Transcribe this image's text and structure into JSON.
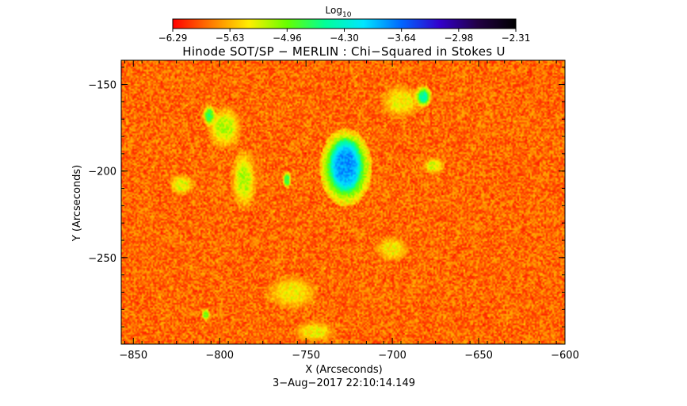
{
  "chart_data": {
    "type": "heatmap",
    "title": "Hinode SOT/SP − MERLIN : Chi−Squared in Stokes U",
    "xlabel": "X (Arcseconds)",
    "ylabel": "Y (Arcseconds)",
    "timestamp": "3−Aug−2017 22:10:14.149",
    "colorbar": {
      "label_main": "Log",
      "label_sub": "10",
      "tick_labels": [
        "−6.29",
        "−5.63",
        "−4.96",
        "−4.30",
        "−3.64",
        "−2.98",
        "−2.31"
      ],
      "range": [
        -6.29,
        -2.31
      ],
      "colormap": [
        "#ff0000",
        "#ff7a00",
        "#ffee00",
        "#66ff00",
        "#00ff99",
        "#00e6ff",
        "#0066ff",
        "#3300cc",
        "#220044",
        "#000000"
      ]
    },
    "xlim": [
      -857,
      -600
    ],
    "ylim": [
      -300,
      -136
    ],
    "x_ticks": [
      -850,
      -800,
      -750,
      -700,
      -650,
      -600
    ],
    "x_tick_labels": [
      "−850",
      "−800",
      "−750",
      "−700",
      "−650",
      "−600"
    ],
    "y_ticks": [
      -150,
      -200,
      -250
    ],
    "y_tick_labels": [
      "−150",
      "−200",
      "−250"
    ],
    "background_level": -5.9,
    "features": [
      {
        "x": -727,
        "y": -198,
        "rx": 12,
        "ry": 18,
        "level": -4.1
      },
      {
        "x": -727,
        "y": -196,
        "rx": 7,
        "ry": 12,
        "level": -3.8
      },
      {
        "x": -682,
        "y": -157,
        "rx": 4,
        "ry": 5,
        "level": -4.5
      },
      {
        "x": -806,
        "y": -168,
        "rx": 3,
        "ry": 5,
        "level": -4.7
      },
      {
        "x": -761,
        "y": -205,
        "rx": 2,
        "ry": 4,
        "level": -4.7
      },
      {
        "x": -808,
        "y": -283,
        "rx": 2,
        "ry": 3,
        "level": -4.9
      },
      {
        "x": -797,
        "y": -175,
        "rx": 8,
        "ry": 10,
        "level": -5.2
      },
      {
        "x": -786,
        "y": -205,
        "rx": 6,
        "ry": 14,
        "level": -5.2
      },
      {
        "x": -822,
        "y": -208,
        "rx": 6,
        "ry": 5,
        "level": -5.3
      },
      {
        "x": -676,
        "y": -197,
        "rx": 5,
        "ry": 4,
        "level": -5.3
      },
      {
        "x": -695,
        "y": -160,
        "rx": 10,
        "ry": 8,
        "level": -5.4
      },
      {
        "x": -700,
        "y": -245,
        "rx": 8,
        "ry": 6,
        "level": -5.4
      },
      {
        "x": -758,
        "y": -270,
        "rx": 12,
        "ry": 8,
        "level": -5.4
      },
      {
        "x": -745,
        "y": -293,
        "rx": 10,
        "ry": 5,
        "level": -5.4
      }
    ]
  }
}
